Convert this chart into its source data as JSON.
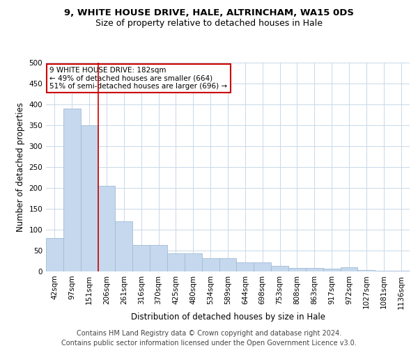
{
  "title_line1": "9, WHITE HOUSE DRIVE, HALE, ALTRINCHAM, WA15 0DS",
  "title_line2": "Size of property relative to detached houses in Hale",
  "xlabel": "Distribution of detached houses by size in Hale",
  "ylabel": "Number of detached properties",
  "categories": [
    "42sqm",
    "97sqm",
    "151sqm",
    "206sqm",
    "261sqm",
    "316sqm",
    "370sqm",
    "425sqm",
    "480sqm",
    "534sqm",
    "589sqm",
    "644sqm",
    "698sqm",
    "753sqm",
    "808sqm",
    "863sqm",
    "917sqm",
    "972sqm",
    "1027sqm",
    "1081sqm",
    "1136sqm"
  ],
  "values": [
    80,
    390,
    350,
    205,
    120,
    63,
    63,
    43,
    43,
    32,
    32,
    22,
    22,
    13,
    8,
    8,
    6,
    10,
    3,
    2,
    1
  ],
  "bar_color": "#c5d8ed",
  "bar_edgecolor": "#a0bcd8",
  "vline_x": 2.5,
  "vline_color": "#cc0000",
  "annotation_line1": "9 WHITE HOUSE DRIVE: 182sqm",
  "annotation_line2": "← 49% of detached houses are smaller (664)",
  "annotation_line3": "51% of semi-detached houses are larger (696) →",
  "annotation_box_color": "#ffffff",
  "annotation_box_edgecolor": "#cc0000",
  "ylim": [
    0,
    500
  ],
  "yticks": [
    0,
    50,
    100,
    150,
    200,
    250,
    300,
    350,
    400,
    450,
    500
  ],
  "footer_line1": "Contains HM Land Registry data © Crown copyright and database right 2024.",
  "footer_line2": "Contains public sector information licensed under the Open Government Licence v3.0.",
  "background_color": "#ffffff",
  "grid_color": "#c8d8e8",
  "title_fontsize": 9.5,
  "subtitle_fontsize": 9,
  "axis_label_fontsize": 8.5,
  "tick_fontsize": 7.5,
  "annotation_fontsize": 7.5,
  "footer_fontsize": 7
}
